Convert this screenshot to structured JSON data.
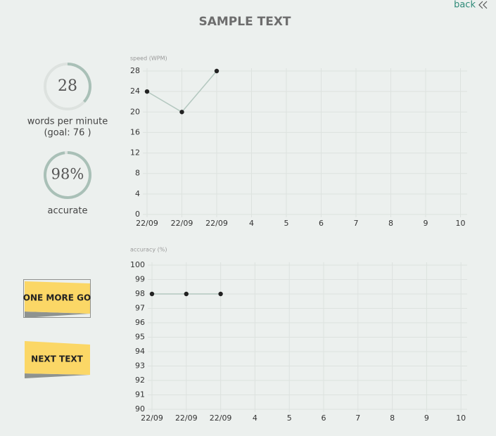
{
  "header": {
    "title": "SAMPLE TEXT",
    "back": "back"
  },
  "stats": {
    "speed": {
      "value": 28,
      "label": "words per minute",
      "goal": {
        "value": 76,
        "label": "(goal: 76 )"
      }
    },
    "accuracy": {
      "value": 98,
      "value_label": "98%",
      "label": "accurate"
    }
  },
  "buttons": [
    "ONE MORE GO",
    "NEXT TEXT"
  ],
  "chart_data": [
    {
      "type": "line",
      "y_label": "speed (WPM)",
      "categories": [
        "22/09",
        "22/09",
        "22/09",
        "4",
        "5",
        "6",
        "7",
        "8",
        "9",
        "10"
      ],
      "values": [
        24,
        20,
        28,
        null,
        null,
        null,
        null,
        null,
        null,
        null
      ],
      "color": "#b3c7bf",
      "point_color": "#222222",
      "ylim": [
        0,
        28
      ],
      "yticks": [
        0,
        4,
        8,
        12,
        16,
        20,
        24,
        28
      ],
      "grid": true
    },
    {
      "type": "line",
      "y_label": "accuracy (%)",
      "categories": [
        "22/09",
        "22/09",
        "22/09",
        "4",
        "5",
        "6",
        "7",
        "8",
        "9",
        "10"
      ],
      "values": [
        98,
        98,
        98,
        null,
        null,
        null,
        null,
        null,
        null,
        null
      ],
      "color": "#b3c7bf",
      "point_color": "#222222",
      "ylim": [
        90,
        100
      ],
      "yticks": [
        90,
        91,
        92,
        93,
        94,
        95,
        96,
        97,
        98,
        99,
        100
      ],
      "grid": true
    }
  ]
}
